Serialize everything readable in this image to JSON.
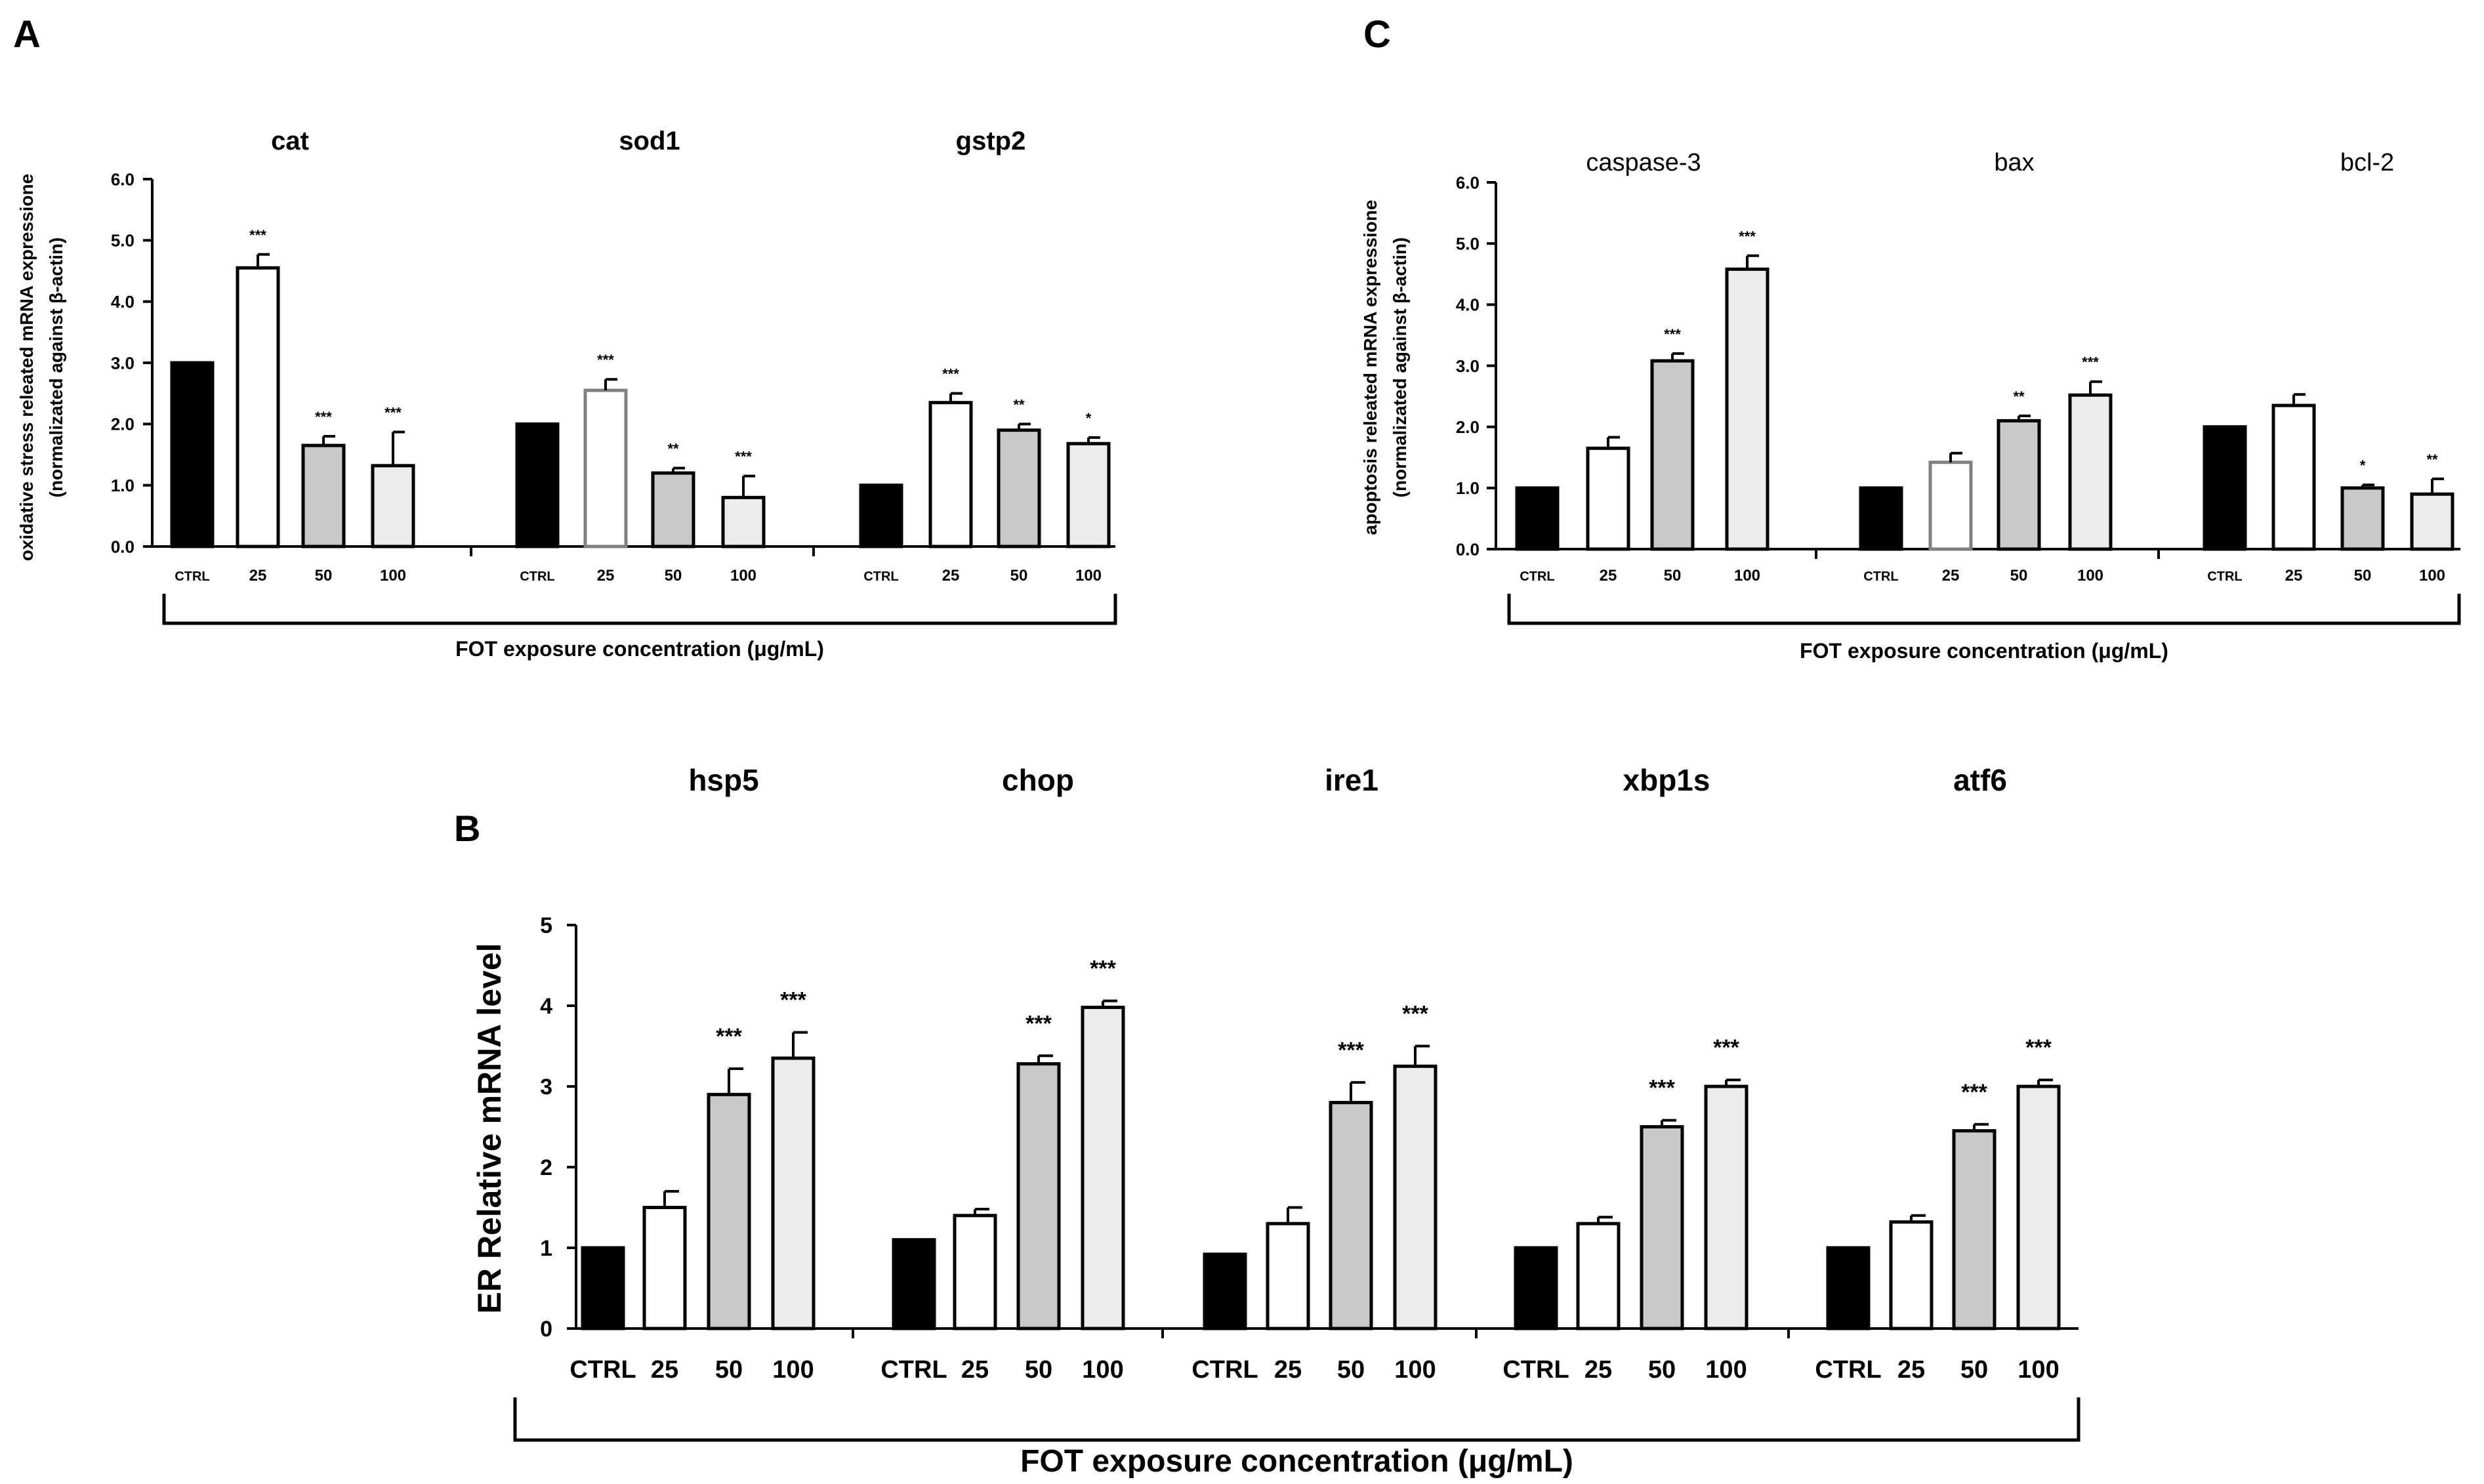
{
  "figure": {
    "panels_order": [
      "A",
      "C",
      "B"
    ]
  },
  "style": {
    "ctrl_fill": "#000000",
    "c25_fill": "#ffffff",
    "c50_fill": "#c8c8c8",
    "c100_fill": "#ececec",
    "stroke": "#000000",
    "gray_outline": "#808080"
  },
  "chart_data": [
    {
      "panel": "A",
      "type": "bar",
      "panel_label": "A",
      "ylabel": "oxidative stress releated mRNA expressione",
      "ylabel2": "(normalizated against β-actin)",
      "xlabel": "FOT exposure concentration (μg/mL)",
      "ylim": [
        0,
        6
      ],
      "yticks": [
        "0.0",
        "1.0",
        "2.0",
        "3.0",
        "4.0",
        "5.0",
        "6.0"
      ],
      "categories": [
        "CTRL",
        "25",
        "50",
        "100"
      ],
      "groups": [
        {
          "name": "cat",
          "values": [
            3.0,
            4.55,
            1.65,
            1.32
          ],
          "errors": [
            0,
            0.22,
            0.15,
            0.55
          ],
          "sig": [
            "",
            "***",
            "***",
            "***"
          ],
          "outlines": [
            "#000000",
            "#000000",
            "#000000",
            "#000000"
          ]
        },
        {
          "name": "sod1",
          "values": [
            2.0,
            2.55,
            1.2,
            0.8
          ],
          "errors": [
            0,
            0.18,
            0.08,
            0.35
          ],
          "sig": [
            "",
            "***",
            "**",
            "***"
          ],
          "outlines": [
            "#000000",
            "#808080",
            "#000000",
            "#000000"
          ]
        },
        {
          "name": "gstp2",
          "values": [
            1.0,
            2.35,
            1.9,
            1.68
          ],
          "errors": [
            0,
            0.15,
            0.1,
            0.1
          ],
          "sig": [
            "",
            "***",
            "**",
            "*"
          ],
          "outlines": [
            "#000000",
            "#000000",
            "#000000",
            "#000000"
          ]
        }
      ]
    },
    {
      "panel": "C",
      "type": "bar",
      "panel_label": "C",
      "ylabel": "apoptosis releated mRNA expressione",
      "ylabel2": "(normalizated against β-actin)",
      "xlabel": "FOT exposure concentration (μg/mL)",
      "ylim": [
        0,
        6
      ],
      "yticks": [
        "0.0",
        "1.0",
        "2.0",
        "3.0",
        "4.0",
        "5.0",
        "6.0"
      ],
      "categories": [
        "CTRL",
        "25",
        "50",
        "100"
      ],
      "groups": [
        {
          "name": "caspase-3",
          "values": [
            1.0,
            1.65,
            3.08,
            4.58
          ],
          "errors": [
            0,
            0.18,
            0.12,
            0.22
          ],
          "sig": [
            "",
            "",
            "***",
            "***"
          ],
          "outlines": [
            "#000000",
            "#000000",
            "#000000",
            "#000000"
          ]
        },
        {
          "name": "bax",
          "values": [
            1.0,
            1.42,
            2.1,
            2.52
          ],
          "errors": [
            0,
            0.15,
            0.08,
            0.22
          ],
          "sig": [
            "",
            "",
            "**",
            "***"
          ],
          "outlines": [
            "#000000",
            "#808080",
            "#000000",
            "#000000"
          ]
        },
        {
          "name": "bcl-2",
          "values": [
            2.0,
            2.35,
            1.0,
            0.9
          ],
          "errors": [
            0,
            0.18,
            0.05,
            0.25
          ],
          "sig": [
            "",
            "",
            "*",
            "**"
          ],
          "outlines": [
            "#000000",
            "#000000",
            "#000000",
            "#000000"
          ]
        }
      ]
    },
    {
      "panel": "B",
      "type": "bar",
      "panel_label": "B",
      "ylabel": "ER Relative mRNA level",
      "xlabel": "FOT exposure concentration (μg/mL)",
      "ylim": [
        0,
        5
      ],
      "yticks": [
        "0",
        "1",
        "2",
        "3",
        "4",
        "5"
      ],
      "categories": [
        "CTRL",
        "25",
        "50",
        "100"
      ],
      "groups": [
        {
          "name": "hsp5",
          "values": [
            1.0,
            1.5,
            2.9,
            3.35
          ],
          "errors": [
            0,
            0.2,
            0.32,
            0.32
          ],
          "sig": [
            "",
            "",
            "***",
            "***"
          ],
          "outlines": [
            "#000000",
            "#000000",
            "#000000",
            "#000000"
          ]
        },
        {
          "name": "chop",
          "values": [
            1.1,
            1.4,
            3.28,
            3.98
          ],
          "errors": [
            0,
            0.08,
            0.1,
            0.08
          ],
          "sig": [
            "",
            "",
            "***",
            "***"
          ],
          "outlines": [
            "#000000",
            "#000000",
            "#000000",
            "#000000"
          ]
        },
        {
          "name": "ire1",
          "values": [
            0.92,
            1.3,
            2.8,
            3.25
          ],
          "errors": [
            0,
            0.2,
            0.25,
            0.25
          ],
          "sig": [
            "",
            "",
            "***",
            "***"
          ],
          "outlines": [
            "#000000",
            "#000000",
            "#000000",
            "#000000"
          ]
        },
        {
          "name": "xbp1s",
          "values": [
            1.0,
            1.3,
            2.5,
            3.0
          ],
          "errors": [
            0,
            0.08,
            0.08,
            0.08
          ],
          "sig": [
            "",
            "",
            "***",
            "***"
          ],
          "outlines": [
            "#000000",
            "#000000",
            "#000000",
            "#000000"
          ]
        },
        {
          "name": "atf6",
          "values": [
            1.0,
            1.32,
            2.45,
            3.0
          ],
          "errors": [
            0,
            0.08,
            0.08,
            0.08
          ],
          "sig": [
            "",
            "",
            "***",
            "***"
          ],
          "outlines": [
            "#000000",
            "#000000",
            "#000000",
            "#000000"
          ]
        }
      ]
    }
  ]
}
